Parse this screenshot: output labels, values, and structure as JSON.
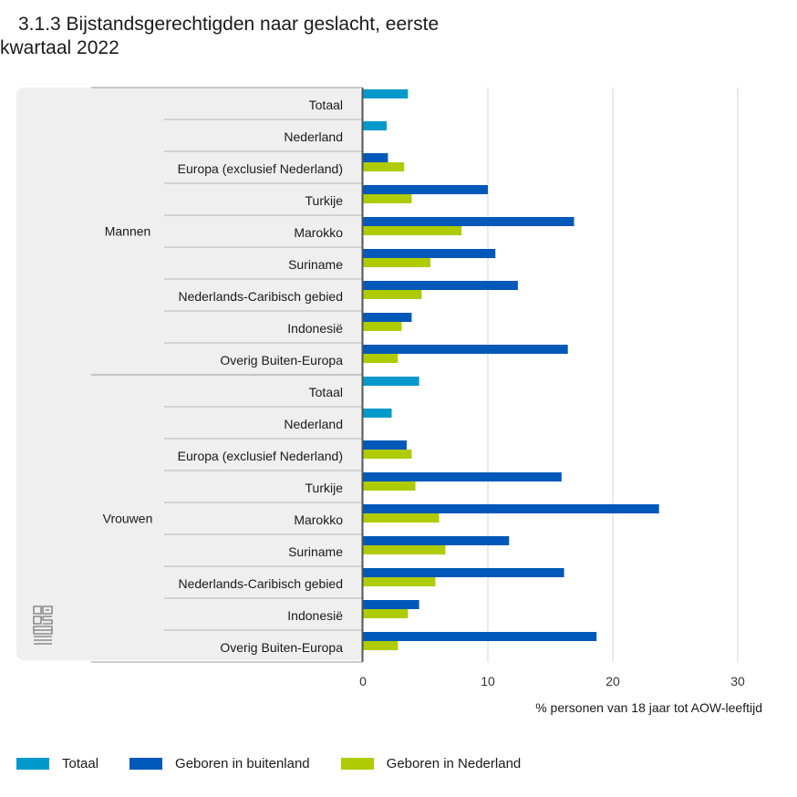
{
  "chart_data": {
    "type": "bar",
    "orientation": "horizontal",
    "title_line1": "3.1.3 Bijstandsgerechtigden naar geslacht, eerste",
    "title_line2": "kwartaal 2022",
    "xlabel": "% personen van 18 jaar tot AOW-leeftijd",
    "xlim": [
      0,
      30
    ],
    "xticks": [
      "0",
      "10",
      "20",
      "30"
    ],
    "legend_position": "bottom-left",
    "series": [
      {
        "name": "Totaal",
        "color": "#0099cc"
      },
      {
        "name": "Geboren in buitenland",
        "color": "#0058b8"
      },
      {
        "name": "Geboren in Nederland",
        "color": "#afcb05"
      }
    ],
    "groups": [
      {
        "name": "Mannen",
        "rows": [
          {
            "label": "Totaal",
            "totaal": 3.6
          },
          {
            "label": "Nederland",
            "totaal": 1.9
          },
          {
            "label": "Europa (exclusief Nederland)",
            "buitenland": 2.0,
            "nederland": 3.3
          },
          {
            "label": "Turkije",
            "buitenland": 10.0,
            "nederland": 3.9
          },
          {
            "label": "Marokko",
            "buitenland": 16.9,
            "nederland": 7.9
          },
          {
            "label": "Suriname",
            "buitenland": 10.6,
            "nederland": 5.4
          },
          {
            "label": "Nederlands-Caribisch gebied",
            "buitenland": 12.4,
            "nederland": 4.7
          },
          {
            "label": "Indonesië",
            "buitenland": 3.9,
            "nederland": 3.1
          },
          {
            "label": "Overig Buiten-Europa",
            "buitenland": 16.4,
            "nederland": 2.8
          }
        ]
      },
      {
        "name": "Vrouwen",
        "rows": [
          {
            "label": "Totaal",
            "totaal": 4.5
          },
          {
            "label": "Nederland",
            "totaal": 2.3
          },
          {
            "label": "Europa (exclusief Nederland)",
            "buitenland": 3.5,
            "nederland": 3.9
          },
          {
            "label": "Turkije",
            "buitenland": 15.9,
            "nederland": 4.2
          },
          {
            "label": "Marokko",
            "buitenland": 23.7,
            "nederland": 6.1
          },
          {
            "label": "Suriname",
            "buitenland": 11.7,
            "nederland": 6.6
          },
          {
            "label": "Nederlands-Caribisch gebied",
            "buitenland": 16.1,
            "nederland": 5.8
          },
          {
            "label": "Indonesië",
            "buitenland": 4.5,
            "nederland": 3.6
          },
          {
            "label": "Overig Buiten-Europa",
            "buitenland": 18.7,
            "nederland": 2.8
          }
        ]
      }
    ]
  }
}
